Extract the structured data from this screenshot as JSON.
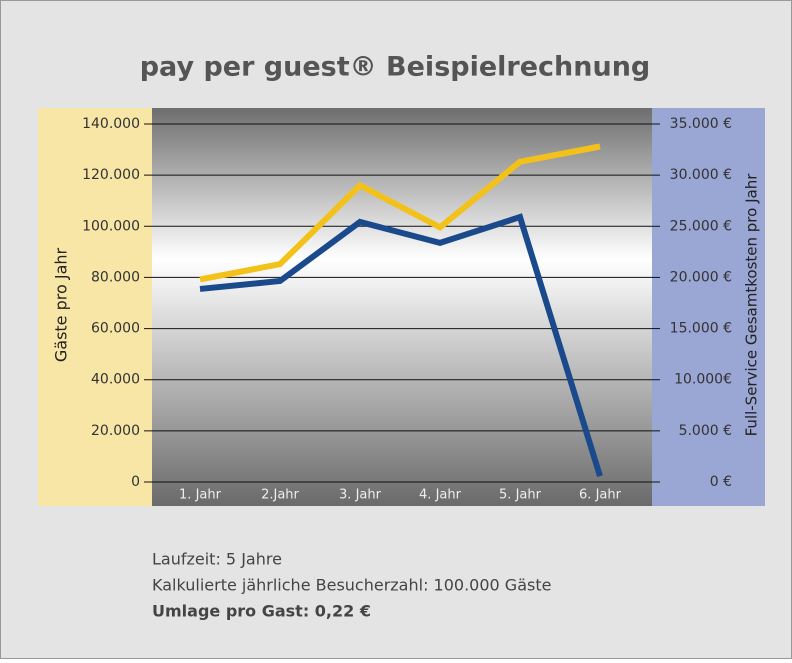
{
  "chart_data": {
    "type": "line",
    "title": "pay per guest® Beispielrechnung",
    "y_label": "Gäste pro Jahr",
    "y2_label": "Full-Service Gesamtkosten pro Jahr",
    "categories": [
      "1. Jahr",
      "2.Jahr",
      "3. Jahr",
      "4. Jahr",
      "5. Jahr",
      "6. Jahr"
    ],
    "series": [
      {
        "color": "#f2c21b",
        "axis": "y2",
        "values": [
          19800,
          21300,
          29000,
          24900,
          31300,
          32800
        ]
      },
      {
        "color": "#1a4a8c",
        "values": [
          75500,
          78600,
          101700,
          93500,
          103600,
          2300
        ]
      }
    ],
    "ylim": [
      0,
      140000
    ],
    "yticks": [
      {
        "value": 140000,
        "label": "140.000"
      },
      {
        "value": 120000,
        "label": "120.000"
      },
      {
        "value": 100000,
        "label": "100.000"
      },
      {
        "value": 80000,
        "label": "80.000"
      },
      {
        "value": 60000,
        "label": "60.000"
      },
      {
        "value": 40000,
        "label": "40.000"
      },
      {
        "value": 20000,
        "label": "20.000"
      },
      0
    ],
    "y2lim": [
      0,
      35000
    ],
    "y2ticks": [
      {
        "value": 35000,
        "label": "35.000 €"
      },
      {
        "value": 30000,
        "label": "30.000 €"
      },
      {
        "value": 25000,
        "label": "25.000 €"
      },
      {
        "value": 20000,
        "label": "20.000 €"
      },
      {
        "value": 15000,
        "label": "15.000 €"
      },
      {
        "value": 10000,
        "label": "10.000€"
      },
      {
        "value": 5000,
        "label": "5.000 €"
      },
      {
        "value": 0,
        "label": "0 €"
      }
    ],
    "grid": true,
    "notes": [
      "Laufzeit: 5 Jahre",
      "Kalkulierte jährliche Besucherzahl: 100.000 Gäste",
      "Umlage pro Gast: 0,22 €"
    ]
  }
}
